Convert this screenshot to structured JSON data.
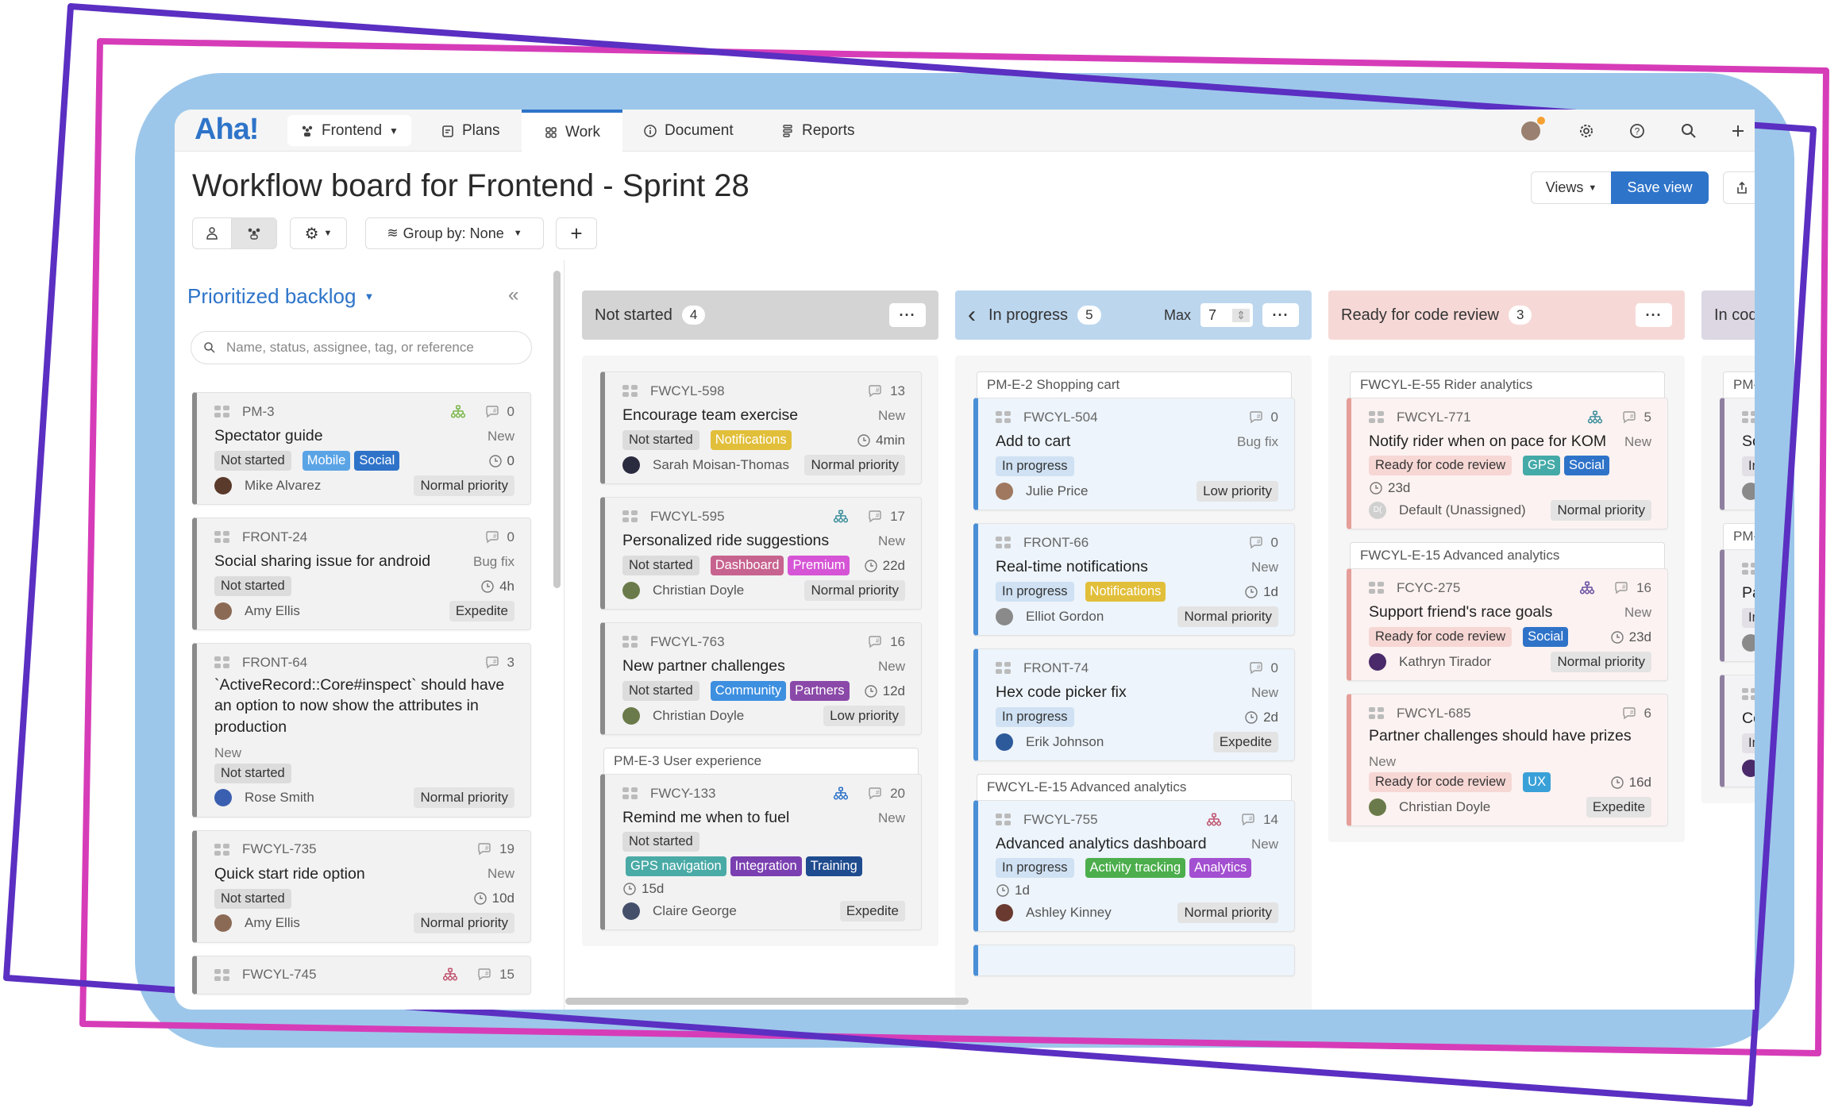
{
  "colors": {
    "accent": "#2e74c9",
    "backdrop_blue": "#9dc7ea",
    "frame_pink": "#d63cb8",
    "frame_purple": "#5a2fc2"
  },
  "nav": {
    "logo": "Aha!",
    "workspace": "Frontend",
    "items": [
      {
        "label": "Plans",
        "icon": "calendar-icon"
      },
      {
        "label": "Work",
        "icon": "grid-icon",
        "active": true
      },
      {
        "label": "Document",
        "icon": "info-icon"
      },
      {
        "label": "Reports",
        "icon": "reports-icon"
      }
    ],
    "right_icons": [
      "user-avatar",
      "gear-icon",
      "help-icon",
      "search-icon",
      "plus-icon"
    ]
  },
  "page": {
    "title": "Workflow board for Frontend - Sprint 28",
    "views_label": "Views",
    "save_view_label": "Save view",
    "group_by_label": "Group by: None"
  },
  "sidebar": {
    "title": "Prioritized backlog",
    "search_placeholder": "Name, status, assignee, tag, or reference",
    "cards": [
      {
        "id": "PM-3",
        "title": "Spectator guide",
        "type": "New",
        "status": "Not started",
        "tags": [
          {
            "label": "Mobile",
            "color": "#5aa4e6"
          },
          {
            "label": "Social",
            "color": "#2f73c9"
          }
        ],
        "time": "0",
        "assignee": "Mike Alvarez",
        "avatar": "#5a3a2a",
        "priority": "Normal priority",
        "comments": "0",
        "hierarchy": "#7ab648"
      },
      {
        "id": "FRONT-24",
        "title": "Social sharing issue for android",
        "type": "Bug fix",
        "status": "Not started",
        "tags": [],
        "time": "4h",
        "assignee": "Amy Ellis",
        "avatar": "#8b6a55",
        "priority": "Expedite",
        "comments": "0"
      },
      {
        "id": "FRONT-64",
        "title": "`ActiveRecord::Core#inspect` should have an option to now show the attributes in production",
        "type": "New",
        "status": "Not started",
        "tags": [],
        "assignee": "Rose Smith",
        "avatar": "#3b5fb0",
        "priority": "Normal priority",
        "comments": "3"
      },
      {
        "id": "FWCYL-735",
        "title": "Quick start ride option",
        "type": "New",
        "status": "Not started",
        "tags": [],
        "time": "10d",
        "assignee": "Amy Ellis",
        "avatar": "#8b6a55",
        "priority": "Normal priority",
        "comments": "19"
      },
      {
        "id": "FWCYL-745",
        "comments": "15",
        "hierarchy": "#c0546f"
      }
    ]
  },
  "board": {
    "columns": [
      {
        "name": "Not started",
        "count": "4",
        "cls": "ns",
        "head_color": "#d4d4d4",
        "groups": [
          {
            "cards": [
              {
                "id": "FWCYL-598",
                "title": "Encourage team exercise",
                "type": "New",
                "status": "Not started",
                "tags": [
                  {
                    "label": "Notifications",
                    "color": "#e2bf3a"
                  }
                ],
                "time": "4min",
                "assignee": "Sarah Moisan-Thomas",
                "avatar": "#2b2b40",
                "priority": "Normal priority",
                "comments": "13"
              },
              {
                "id": "FWCYL-595",
                "title": "Personalized ride suggestions",
                "type": "New",
                "status": "Not started",
                "tags": [
                  {
                    "label": "Dashboard",
                    "color": "#c7638f"
                  },
                  {
                    "label": "Premium",
                    "color": "#d655d6"
                  }
                ],
                "time": "22d",
                "assignee": "Christian Doyle",
                "avatar": "#6b7a4a",
                "priority": "Normal priority",
                "comments": "17",
                "hierarchy": "#3d8f9c"
              },
              {
                "id": "FWCYL-763",
                "title": "New partner challenges",
                "type": "New",
                "status": "Not started",
                "tags": [
                  {
                    "label": "Community",
                    "color": "#3d8fe0"
                  },
                  {
                    "label": "Partners",
                    "color": "#8a49a8"
                  }
                ],
                "time": "12d",
                "assignee": "Christian Doyle",
                "avatar": "#6b7a4a",
                "priority": "Low priority",
                "comments": "16"
              }
            ]
          },
          {
            "epic": "PM-E-3 User experience",
            "cards": [
              {
                "id": "FWCY-133",
                "title": "Remind me when to fuel",
                "type": "New",
                "status": "Not started",
                "tags": [
                  {
                    "label": "GPS navigation",
                    "color": "#4aaaa6"
                  },
                  {
                    "label": "Integration",
                    "color": "#7a3fb0"
                  },
                  {
                    "label": "Training",
                    "color": "#1f4b8f"
                  }
                ],
                "time": "15d",
                "assignee": "Claire George",
                "avatar": "#44506a",
                "priority": "Expedite",
                "comments": "20",
                "hierarchy": "#2f73c9"
              }
            ]
          }
        ]
      },
      {
        "name": "In progress",
        "count": "5",
        "cls": "ip",
        "head_color": "#bcd6ee",
        "max_label": "Max",
        "max_value": "7",
        "groups": [
          {
            "epic": "PM-E-2 Shopping cart",
            "cards": [
              {
                "id": "FWCYL-504",
                "title": "Add to cart",
                "type": "Bug fix",
                "status": "In progress",
                "tags": [],
                "assignee": "Julie Price",
                "avatar": "#a07860",
                "priority": "Low priority",
                "comments": "0"
              },
              {
                "id": "FRONT-66",
                "title": "Real-time notifications",
                "type": "New",
                "status": "In progress",
                "tags": [
                  {
                    "label": "Notifications",
                    "color": "#e2bf3a"
                  }
                ],
                "time": "1d",
                "assignee": "Elliot Gordon",
                "avatar": "#8a8a8a",
                "priority": "Normal priority",
                "comments": "0"
              },
              {
                "id": "FRONT-74",
                "title": "Hex code picker fix",
                "type": "New",
                "status": "In progress",
                "tags": [],
                "time": "2d",
                "assignee": "Erik Johnson",
                "avatar": "#2d5a9a",
                "priority": "Expedite",
                "comments": "0"
              }
            ]
          },
          {
            "epic": "FWCYL-E-15 Advanced analytics",
            "cards": [
              {
                "id": "FWCYL-755",
                "title": "Advanced analytics dashboard",
                "type": "New",
                "status": "In progress",
                "tags": [
                  {
                    "label": "Activity tracking",
                    "color": "#4cae4c"
                  },
                  {
                    "label": "Analytics",
                    "color": "#a34fd1"
                  }
                ],
                "time": "1d",
                "assignee": "Ashley Kinney",
                "avatar": "#6a3a30",
                "priority": "Normal priority",
                "comments": "14",
                "hierarchy": "#c0546f"
              }
            ]
          }
        ]
      },
      {
        "name": "Ready for code review",
        "count": "3",
        "cls": "rv",
        "head_color": "#f6d9d7",
        "groups": [
          {
            "epic": "FWCYL-E-55 Rider analytics",
            "cards": [
              {
                "id": "FWCYL-771",
                "title": "Notify rider when on pace for KOM",
                "type": "New",
                "status": "Ready for code review",
                "tags": [
                  {
                    "label": "GPS",
                    "color": "#44aaa8"
                  },
                  {
                    "label": "Social",
                    "color": "#2f73c9"
                  }
                ],
                "time": "23d",
                "assignee": "Default (Unassigned)",
                "avatar": "#d0d0d0",
                "initials": "D(",
                "priority": "Normal priority",
                "comments": "5",
                "hierarchy": "#3d8f9c"
              }
            ]
          },
          {
            "epic": "FWCYL-E-15 Advanced analytics",
            "cards": [
              {
                "id": "FCYC-275",
                "title": "Support friend's race goals",
                "type": "New",
                "status": "Ready for code review",
                "tags": [
                  {
                    "label": "Social",
                    "color": "#2f73c9"
                  }
                ],
                "time": "23d",
                "assignee": "Kathryn Tirador",
                "avatar": "#4a2a6a",
                "priority": "Normal priority",
                "comments": "16",
                "hierarchy": "#6a4ea0"
              },
              {
                "id": "FWCYL-685",
                "title": "Partner challenges should have prizes",
                "type": "New",
                "status": "Ready for code review",
                "tags": [
                  {
                    "label": "UX",
                    "color": "#3aa0d8"
                  }
                ],
                "time": "16d",
                "assignee": "Christian Doyle",
                "avatar": "#6b7a4a",
                "priority": "Expedite",
                "comments": "6"
              }
            ]
          }
        ]
      },
      {
        "name": "In cod",
        "cls": "cr",
        "head_color": "#dcd7e3",
        "groups": [
          {
            "epic": "PM-",
            "cards": [
              {
                "title": "Sc",
                "status": "In",
                "avatar": "#8a8a8a"
              }
            ]
          },
          {
            "epic": "PM-",
            "cards": [
              {
                "title": "Pa",
                "status": "In",
                "avatar": "#8a8a8a"
              }
            ]
          },
          {
            "cards": [
              {
                "title": "Co",
                "status": "In",
                "avatar": "#4a2a6a"
              }
            ]
          }
        ]
      }
    ]
  }
}
